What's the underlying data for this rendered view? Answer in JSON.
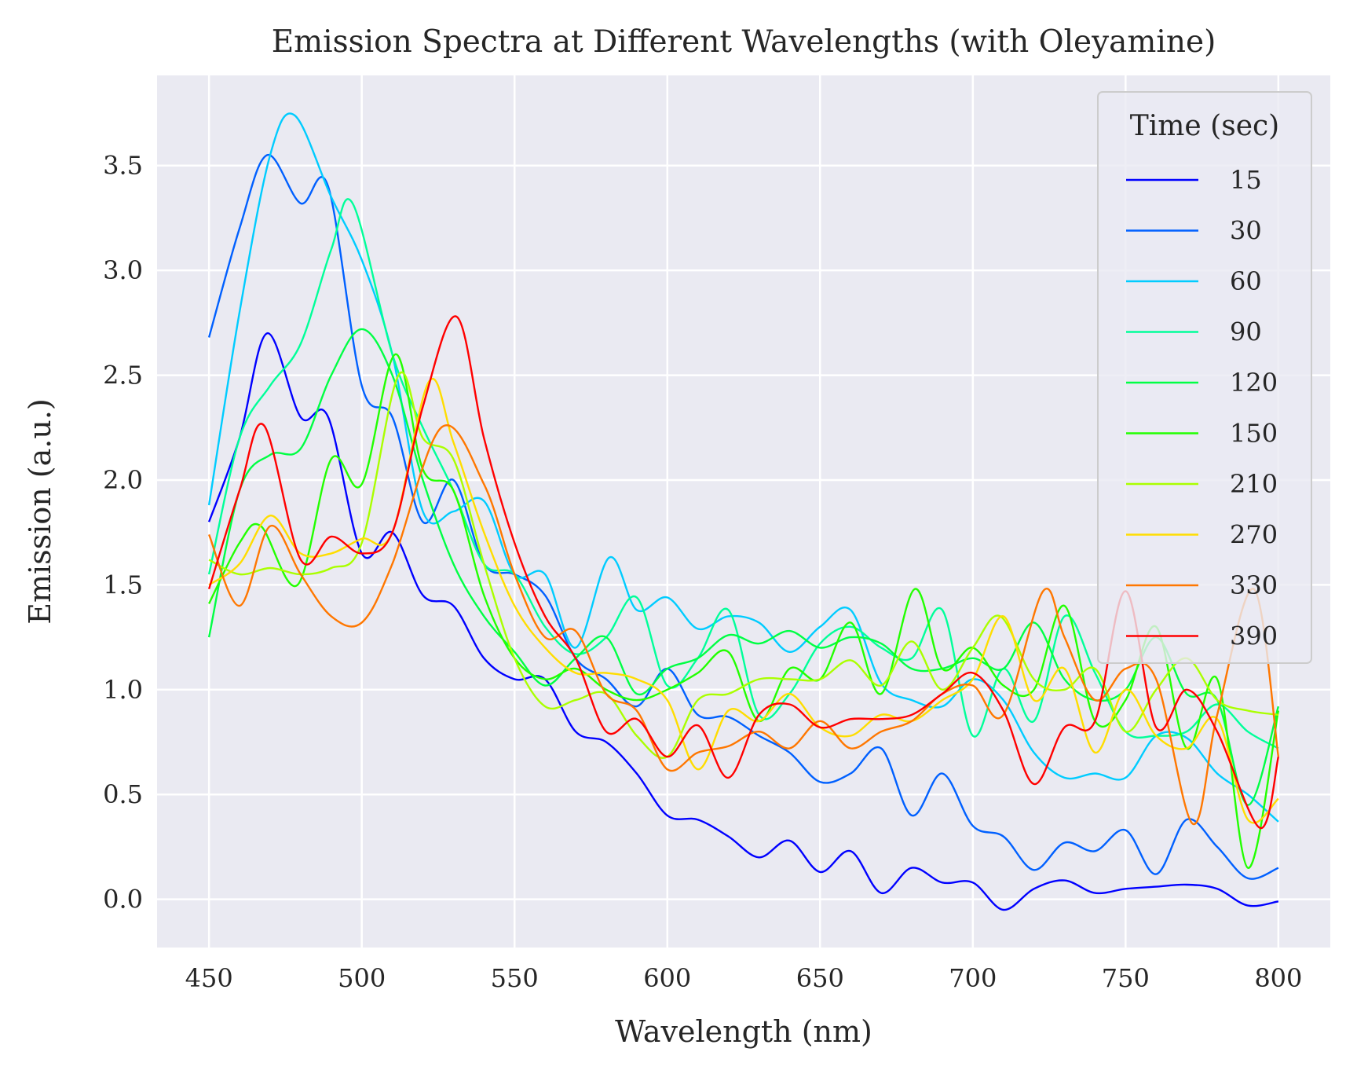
{
  "chart_data": {
    "type": "line",
    "title": "Emission Spectra at Different Wavelengths (with Oleyamine)",
    "xlabel": "Wavelength (nm)",
    "ylabel": "Emission (a.u.)",
    "xlim": [
      433,
      817
    ],
    "ylim": [
      -0.23,
      3.93
    ],
    "xticks": [
      450,
      500,
      550,
      600,
      650,
      700,
      750,
      800
    ],
    "yticks": [
      0.0,
      0.5,
      1.0,
      1.5,
      2.0,
      2.5,
      3.0,
      3.5
    ],
    "grid": true,
    "legend_title": "Time (sec)",
    "legend_position": "top-right",
    "series": [
      {
        "name": "15",
        "color": "#0000ff",
        "x": [
          450,
          460,
          469,
          480,
          489,
          500,
          510,
          520,
          530,
          540,
          550,
          560,
          570,
          580,
          590,
          600,
          610,
          620,
          630,
          640,
          650,
          660,
          670,
          680,
          690,
          700,
          710,
          720,
          730,
          740,
          750,
          760,
          770,
          780,
          790,
          800
        ],
        "y": [
          1.8,
          2.2,
          2.7,
          2.3,
          2.3,
          1.65,
          1.75,
          1.45,
          1.4,
          1.15,
          1.05,
          1.05,
          0.8,
          0.75,
          0.6,
          0.4,
          0.38,
          0.3,
          0.2,
          0.28,
          0.13,
          0.23,
          0.03,
          0.15,
          0.08,
          0.08,
          -0.05,
          0.05,
          0.09,
          0.03,
          0.05,
          0.06,
          0.07,
          0.05,
          -0.03,
          -0.01
        ]
      },
      {
        "name": "30",
        "color": "#0060ff",
        "x": [
          450,
          460,
          469,
          480,
          489,
          500,
          510,
          520,
          530,
          540,
          550,
          560,
          570,
          580,
          590,
          600,
          610,
          620,
          630,
          640,
          650,
          660,
          670,
          680,
          690,
          700,
          710,
          720,
          730,
          740,
          750,
          760,
          770,
          780,
          790,
          800
        ],
        "y": [
          2.68,
          3.2,
          3.55,
          3.32,
          3.4,
          2.45,
          2.3,
          1.8,
          2.0,
          1.6,
          1.55,
          1.45,
          1.15,
          1.05,
          0.92,
          1.1,
          0.88,
          0.87,
          0.78,
          0.7,
          0.56,
          0.6,
          0.72,
          0.4,
          0.6,
          0.35,
          0.3,
          0.14,
          0.27,
          0.23,
          0.33,
          0.12,
          0.38,
          0.25,
          0.1,
          0.15
        ]
      },
      {
        "name": "60",
        "color": "#00ccff",
        "x": [
          450,
          460,
          470,
          478,
          490,
          500,
          510,
          520,
          530,
          540,
          550,
          560,
          570,
          581,
          590,
          600,
          610,
          620,
          630,
          640,
          650,
          660,
          670,
          680,
          690,
          700,
          710,
          720,
          730,
          740,
          750,
          760,
          770,
          780,
          790,
          800
        ],
        "y": [
          1.88,
          2.8,
          3.55,
          3.74,
          3.35,
          3.05,
          2.6,
          1.85,
          1.85,
          1.9,
          1.55,
          1.55,
          1.2,
          1.63,
          1.38,
          1.44,
          1.29,
          1.35,
          1.32,
          1.18,
          1.3,
          1.38,
          1.03,
          0.95,
          0.92,
          1.05,
          0.95,
          0.7,
          0.58,
          0.6,
          0.58,
          0.78,
          0.77,
          0.6,
          0.5,
          0.37
        ]
      },
      {
        "name": "90",
        "color": "#00ff99",
        "x": [
          450,
          460,
          470,
          480,
          490,
          497,
          510,
          520,
          530,
          540,
          550,
          560,
          570,
          580,
          590,
          600,
          610,
          620,
          630,
          640,
          650,
          660,
          670,
          680,
          690,
          700,
          710,
          720,
          730,
          740,
          750,
          760,
          770,
          780,
          790,
          800
        ],
        "y": [
          1.55,
          2.2,
          2.45,
          2.65,
          3.1,
          3.32,
          2.6,
          2.25,
          1.95,
          1.6,
          1.55,
          1.3,
          1.17,
          1.25,
          1.44,
          1.02,
          1.15,
          1.38,
          0.88,
          0.98,
          1.22,
          1.3,
          1.2,
          1.15,
          1.38,
          0.78,
          1.1,
          0.85,
          1.35,
          1.08,
          0.8,
          0.78,
          0.8,
          0.93,
          0.8,
          0.72
        ]
      },
      {
        "name": "120",
        "color": "#00ff44",
        "x": [
          450,
          460,
          470,
          480,
          490,
          500,
          510,
          520,
          530,
          540,
          550,
          560,
          570,
          580,
          590,
          600,
          610,
          620,
          630,
          640,
          650,
          660,
          670,
          680,
          690,
          700,
          710,
          720,
          730,
          740,
          750,
          760,
          770,
          780,
          790,
          800
        ],
        "y": [
          1.25,
          1.95,
          2.12,
          2.15,
          2.5,
          2.72,
          2.5,
          2.0,
          1.6,
          1.35,
          1.18,
          1.02,
          1.15,
          1.25,
          0.98,
          1.1,
          1.15,
          1.26,
          1.22,
          1.28,
          1.2,
          1.25,
          1.22,
          1.1,
          1.1,
          1.15,
          1.1,
          1.32,
          1.05,
          0.95,
          1.0,
          1.25,
          0.98,
          0.95,
          0.45,
          0.92
        ]
      },
      {
        "name": "150",
        "color": "#22ff00",
        "x": [
          450,
          460,
          467,
          479,
          490,
          500,
          511,
          520,
          530,
          540,
          550,
          560,
          570,
          580,
          590,
          600,
          610,
          620,
          630,
          640,
          650,
          660,
          670,
          681,
          690,
          700,
          710,
          720,
          730,
          740,
          750,
          760,
          770,
          780,
          790,
          800
        ],
        "y": [
          1.41,
          1.7,
          1.78,
          1.5,
          2.1,
          1.98,
          2.6,
          2.05,
          1.95,
          1.45,
          1.15,
          1.05,
          1.1,
          1.0,
          0.95,
          1.0,
          1.08,
          1.18,
          0.85,
          1.1,
          1.05,
          1.32,
          0.98,
          1.48,
          1.1,
          1.2,
          1.02,
          1.0,
          1.4,
          0.85,
          0.95,
          1.3,
          0.72,
          1.05,
          0.15,
          0.9
        ]
      },
      {
        "name": "210",
        "color": "#aaff00",
        "x": [
          450,
          460,
          470,
          480,
          490,
          500,
          512,
          520,
          530,
          540,
          550,
          560,
          570,
          580,
          590,
          600,
          610,
          620,
          630,
          640,
          650,
          660,
          670,
          680,
          690,
          700,
          709,
          720,
          730,
          740,
          750,
          760,
          770,
          780,
          790,
          800
        ],
        "y": [
          1.62,
          1.55,
          1.58,
          1.55,
          1.58,
          1.7,
          2.5,
          2.2,
          2.1,
          1.6,
          1.15,
          0.92,
          0.95,
          0.98,
          0.78,
          0.68,
          0.95,
          0.98,
          1.05,
          1.05,
          1.05,
          1.14,
          1.02,
          1.23,
          1.0,
          1.2,
          1.35,
          1.05,
          1.0,
          1.1,
          0.8,
          1.0,
          1.15,
          0.95,
          0.9,
          0.88
        ]
      },
      {
        "name": "270",
        "color": "#ffdd00",
        "x": [
          450,
          460,
          470,
          480,
          490,
          500,
          510,
          522,
          530,
          540,
          550,
          560,
          570,
          580,
          590,
          600,
          610,
          620,
          630,
          640,
          650,
          660,
          670,
          680,
          690,
          700,
          710,
          720,
          730,
          740,
          750,
          760,
          770,
          780,
          790,
          800
        ],
        "y": [
          1.5,
          1.6,
          1.83,
          1.65,
          1.65,
          1.72,
          1.75,
          2.47,
          2.18,
          1.75,
          1.4,
          1.2,
          1.08,
          1.08,
          1.05,
          0.95,
          0.62,
          0.9,
          0.85,
          0.98,
          0.82,
          0.78,
          0.88,
          0.85,
          0.95,
          1.05,
          1.35,
          0.95,
          1.1,
          0.7,
          1.0,
          0.78,
          0.72,
          0.86,
          0.38,
          0.48
        ]
      },
      {
        "name": "330",
        "color": "#ff7700",
        "x": [
          450,
          460,
          470,
          480,
          490,
          500,
          510,
          526,
          540,
          550,
          560,
          570,
          580,
          590,
          600,
          610,
          620,
          630,
          640,
          650,
          660,
          670,
          680,
          690,
          700,
          710,
          723,
          730,
          740,
          750,
          760,
          772,
          780,
          792,
          800
        ],
        "y": [
          1.74,
          1.4,
          1.78,
          1.55,
          1.35,
          1.32,
          1.6,
          2.25,
          1.98,
          1.55,
          1.25,
          1.28,
          0.98,
          0.9,
          0.62,
          0.7,
          0.73,
          0.8,
          0.72,
          0.85,
          0.72,
          0.8,
          0.85,
          0.98,
          1.02,
          0.88,
          1.47,
          1.25,
          0.95,
          1.1,
          1.05,
          0.36,
          0.88,
          1.48,
          0.68
        ]
      },
      {
        "name": "390",
        "color": "#ff0000",
        "x": [
          450,
          460,
          468,
          480,
          490,
          500,
          510,
          520,
          531,
          540,
          550,
          560,
          570,
          580,
          590,
          600,
          610,
          620,
          630,
          640,
          650,
          660,
          670,
          680,
          690,
          700,
          710,
          720,
          730,
          740,
          750,
          760,
          770,
          780,
          794,
          800
        ],
        "y": [
          1.48,
          1.95,
          2.26,
          1.62,
          1.73,
          1.65,
          1.75,
          2.35,
          2.78,
          2.2,
          1.7,
          1.35,
          1.15,
          0.8,
          0.86,
          0.68,
          0.83,
          0.58,
          0.88,
          0.93,
          0.82,
          0.86,
          0.86,
          0.88,
          0.98,
          1.08,
          0.9,
          0.55,
          0.82,
          0.85,
          1.47,
          0.82,
          1.0,
          0.8,
          0.34,
          0.68
        ]
      }
    ]
  }
}
